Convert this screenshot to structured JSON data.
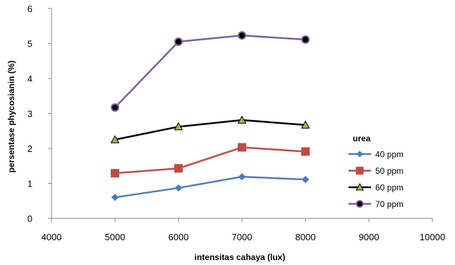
{
  "chart_data": {
    "type": "line",
    "title": "",
    "xlabel": "intensitas cahaya  (lux)",
    "ylabel": "persentase phycosianin  (%)",
    "xlim": [
      4000,
      10000
    ],
    "ylim": [
      0,
      6
    ],
    "x_ticks": [
      "4000",
      "5000",
      "6000",
      "7000",
      "8000",
      "9000",
      "10000"
    ],
    "y_ticks": [
      "0",
      "1",
      "2",
      "3",
      "4",
      "5",
      "6"
    ],
    "grid": false,
    "legend_title": "urea",
    "legend_position": "right",
    "x": [
      5000,
      6000,
      7000,
      8000
    ],
    "series": [
      {
        "name": "40 ppm",
        "values": [
          0.6,
          0.87,
          1.19,
          1.11
        ],
        "color": "#4a7ebb",
        "marker": "diamond"
      },
      {
        "name": "50 ppm",
        "values": [
          1.29,
          1.43,
          2.03,
          1.91
        ],
        "color": "#be4b48",
        "marker": "square"
      },
      {
        "name": "60 ppm",
        "values": [
          2.25,
          2.62,
          2.81,
          2.67
        ],
        "color": "#000000",
        "marker": "triangle",
        "marker_fill": "#98b954"
      },
      {
        "name": "70 ppm",
        "values": [
          3.17,
          5.05,
          5.23,
          5.11
        ],
        "color": "#7d60a0",
        "marker": "circle",
        "marker_fill": "#000000"
      }
    ]
  }
}
